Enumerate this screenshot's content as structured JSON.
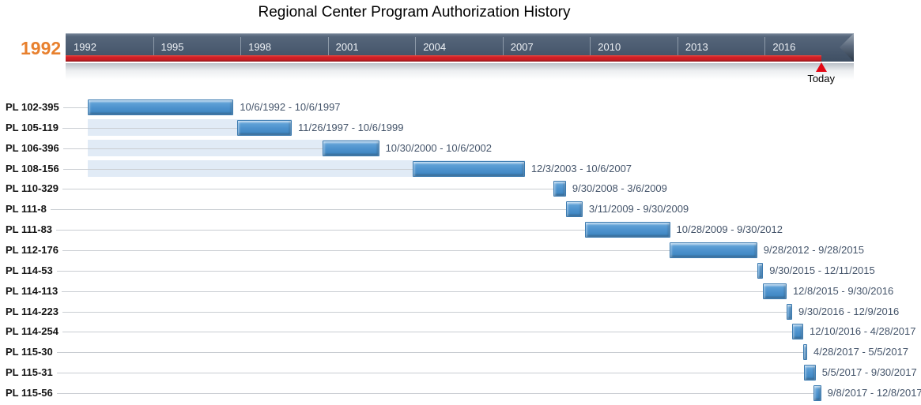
{
  "title": "Regional Center Program Authorization History",
  "timeline": {
    "start_year_label": "1992",
    "axis_years": [
      "1992",
      "1995",
      "1998",
      "2001",
      "2004",
      "2007",
      "2010",
      "2013",
      "2016"
    ],
    "today_label": "Today"
  },
  "colors": {
    "band_dark": "#4B5B70",
    "elapsed_red": "#D22027",
    "bar_blue": "#4E93CE",
    "lead_strip_blue": "#E1EBF6",
    "start_year_orange": "#E8802E",
    "range_text": "#44546A"
  },
  "chart_data": {
    "type": "gantt",
    "title": "Regional Center Program Authorization History",
    "axis": {
      "start_year": 1992,
      "end_year": 2017,
      "tick_step_years": 3,
      "tick_labels": [
        "1992",
        "1995",
        "1998",
        "2001",
        "2004",
        "2007",
        "2010",
        "2013",
        "2016"
      ]
    },
    "today_marker_label": "Today",
    "rows": [
      {
        "label": "PL 102-395",
        "start": "10/6/1992",
        "end": "10/6/1997",
        "range_label": "10/6/1992 - 10/6/1997",
        "lead_strip": false
      },
      {
        "label": "PL 105-119",
        "start": "11/26/1997",
        "end": "10/6/1999",
        "range_label": "11/26/1997 - 10/6/1999",
        "lead_strip": true
      },
      {
        "label": "PL 106-396",
        "start": "10/30/2000",
        "end": "10/6/2002",
        "range_label": "10/30/2000 - 10/6/2002",
        "lead_strip": true
      },
      {
        "label": "PL 108-156",
        "start": "12/3/2003",
        "end": "10/6/2007",
        "range_label": "12/3/2003 - 10/6/2007",
        "lead_strip": true
      },
      {
        "label": "PL 110-329",
        "start": "9/30/2008",
        "end": "3/6/2009",
        "range_label": "9/30/2008 - 3/6/2009",
        "lead_strip": false
      },
      {
        "label": "PL 111-8",
        "start": "3/11/2009",
        "end": "9/30/2009",
        "range_label": "3/11/2009 - 9/30/2009",
        "lead_strip": false
      },
      {
        "label": "PL 111-83",
        "start": "10/28/2009",
        "end": "9/30/2012",
        "range_label": "10/28/2009 - 9/30/2012",
        "lead_strip": false
      },
      {
        "label": "PL 112-176",
        "start": "9/28/2012",
        "end": "9/28/2015",
        "range_label": "9/28/2012 - 9/28/2015",
        "lead_strip": false
      },
      {
        "label": "PL 114-53",
        "start": "9/30/2015",
        "end": "12/11/2015",
        "range_label": "9/30/2015 - 12/11/2015",
        "lead_strip": false
      },
      {
        "label": "PL 114-113",
        "start": "12/8/2015",
        "end": "9/30/2016",
        "range_label": "12/8/2015 - 9/30/2016",
        "lead_strip": false
      },
      {
        "label": "PL 114-223",
        "start": "9/30/2016",
        "end": "12/9/2016",
        "range_label": "9/30/2016 - 12/9/2016",
        "lead_strip": false
      },
      {
        "label": "PL 114-254",
        "start": "12/10/2016",
        "end": "4/28/2017",
        "range_label": "12/10/2016 - 4/28/2017",
        "lead_strip": false
      },
      {
        "label": "PL 115-30",
        "start": "4/28/2017",
        "end": "5/5/2017",
        "range_label": "4/28/2017 - 5/5/2017",
        "lead_strip": false
      },
      {
        "label": "PL 115-31",
        "start": "5/5/2017",
        "end": "9/30/2017",
        "range_label": "5/5/2017 - 9/30/2017",
        "lead_strip": false
      },
      {
        "label": "PL 115-56",
        "start": "9/8/2017",
        "end": "12/8/2017",
        "range_label": "9/8/2017 - 12/8/2017",
        "lead_strip": false
      }
    ]
  }
}
